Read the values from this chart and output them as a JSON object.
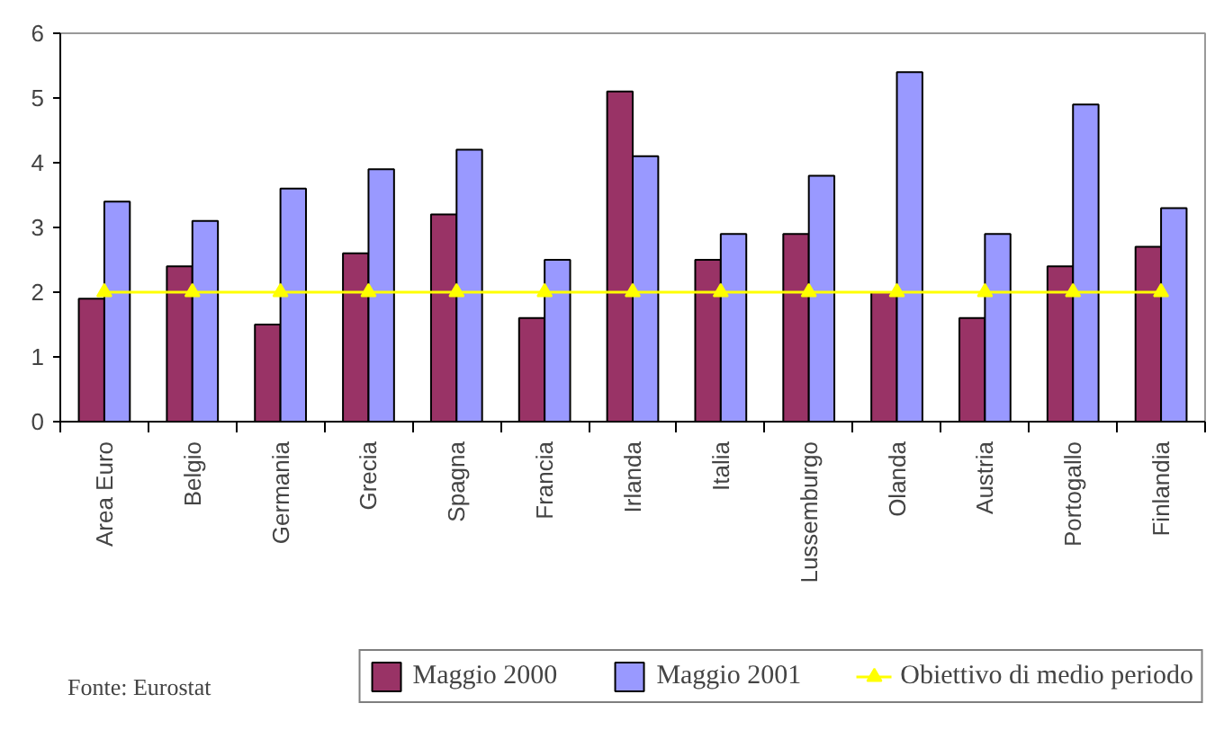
{
  "chart_data": {
    "type": "bar",
    "categories": [
      "Area Euro",
      "Belgio",
      "Germania",
      "Grecia",
      "Spagna",
      "Francia",
      "Irlanda",
      "Italia",
      "Lussemburgo",
      "Olanda",
      "Austria",
      "Portogallo",
      "Finlandia"
    ],
    "series": [
      {
        "name": "Maggio 2000",
        "color": "#993366",
        "values": [
          1.9,
          2.4,
          1.5,
          2.6,
          3.2,
          1.6,
          5.1,
          2.5,
          2.9,
          2.0,
          1.6,
          2.4,
          2.7
        ]
      },
      {
        "name": "Maggio 2001",
        "color": "#9999ff",
        "values": [
          3.4,
          3.1,
          3.6,
          3.9,
          4.2,
          2.5,
          4.1,
          2.9,
          3.8,
          5.4,
          2.9,
          4.9,
          3.3
        ]
      },
      {
        "name": "Obiettivo di medio periodo",
        "type": "line",
        "marker": "triangle",
        "color": "#ffff00",
        "values": [
          2,
          2,
          2,
          2,
          2,
          2,
          2,
          2,
          2,
          2,
          2,
          2,
          2
        ]
      }
    ],
    "ylim": [
      0,
      6
    ],
    "yticks": [
      0,
      1,
      2,
      3,
      4,
      5,
      6
    ],
    "grid": false,
    "legend": "bottom",
    "annotations": [
      "Fonte: Eurostat"
    ]
  }
}
